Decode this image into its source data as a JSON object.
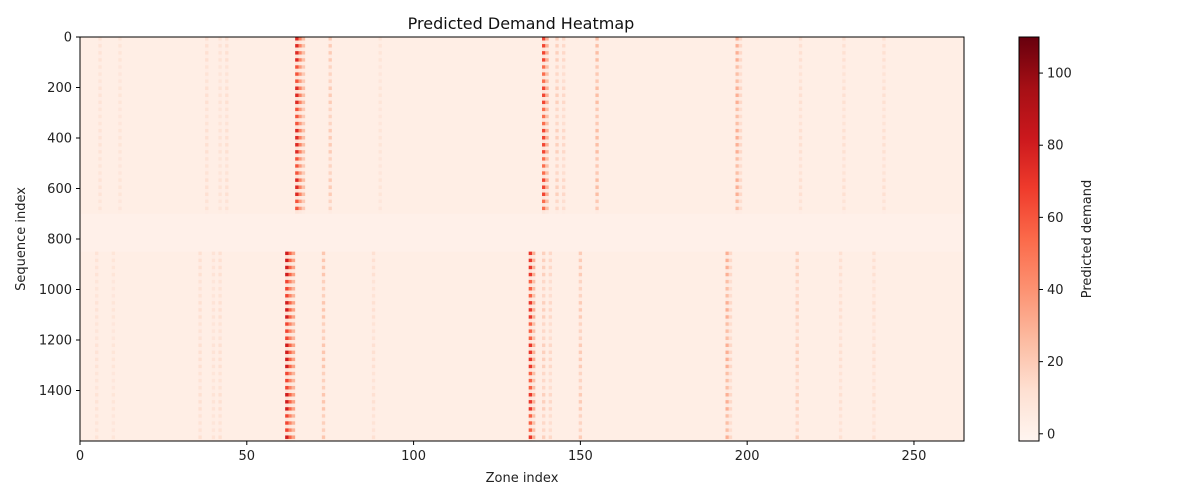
{
  "chart_data": {
    "type": "heatmap",
    "title": "Predicted Demand Heatmap",
    "xlabel": "Zone index",
    "ylabel": "Sequence index",
    "xlim": [
      0,
      265
    ],
    "ylim": [
      1600,
      0
    ],
    "x_ticks": [
      0,
      50,
      100,
      150,
      200,
      250
    ],
    "y_ticks": [
      0,
      200,
      400,
      600,
      800,
      1000,
      1200,
      1400
    ],
    "colorbar": {
      "label": "Predicted demand",
      "range": [
        -2,
        110
      ],
      "ticks": [
        0,
        20,
        40,
        60,
        80,
        100
      ],
      "colormap": "Reds",
      "colors": [
        "#fff5f0",
        "#fee0d2",
        "#fcbba1",
        "#fc9272",
        "#fb6a4a",
        "#ef3b2c",
        "#cb181d",
        "#a50f15",
        "#67000d"
      ]
    },
    "background_value": 3,
    "low_activity_band": [
      700,
      850
    ],
    "segments": [
      {
        "rows": [
          0,
          700
        ],
        "columns": [
          {
            "zone": 65,
            "value": 75
          },
          {
            "zone": 66,
            "value": 45
          },
          {
            "zone": 67,
            "value": 25
          },
          {
            "zone": 75,
            "value": 20
          },
          {
            "zone": 139,
            "value": 65
          },
          {
            "zone": 140,
            "value": 30
          },
          {
            "zone": 143,
            "value": 18
          },
          {
            "zone": 145,
            "value": 15
          },
          {
            "zone": 155,
            "value": 25
          },
          {
            "zone": 197,
            "value": 30
          },
          {
            "zone": 198,
            "value": 15
          },
          {
            "zone": 216,
            "value": 12
          },
          {
            "zone": 229,
            "value": 12
          },
          {
            "zone": 241,
            "value": 12
          },
          {
            "zone": 38,
            "value": 12
          },
          {
            "zone": 42,
            "value": 10
          },
          {
            "zone": 44,
            "value": 12
          },
          {
            "zone": 6,
            "value": 10
          },
          {
            "zone": 12,
            "value": 9
          },
          {
            "zone": 90,
            "value": 9
          }
        ]
      },
      {
        "rows": [
          850,
          1600
        ],
        "columns": [
          {
            "zone": 62,
            "value": 80
          },
          {
            "zone": 63,
            "value": 55
          },
          {
            "zone": 64,
            "value": 35
          },
          {
            "zone": 73,
            "value": 22
          },
          {
            "zone": 135,
            "value": 70
          },
          {
            "zone": 136,
            "value": 30
          },
          {
            "zone": 139,
            "value": 18
          },
          {
            "zone": 141,
            "value": 15
          },
          {
            "zone": 150,
            "value": 20
          },
          {
            "zone": 194,
            "value": 30
          },
          {
            "zone": 195,
            "value": 15
          },
          {
            "zone": 215,
            "value": 18
          },
          {
            "zone": 228,
            "value": 12
          },
          {
            "zone": 238,
            "value": 12
          },
          {
            "zone": 36,
            "value": 12
          },
          {
            "zone": 40,
            "value": 10
          },
          {
            "zone": 42,
            "value": 12
          },
          {
            "zone": 5,
            "value": 10
          },
          {
            "zone": 10,
            "value": 9
          },
          {
            "zone": 88,
            "value": 12
          }
        ]
      }
    ]
  }
}
